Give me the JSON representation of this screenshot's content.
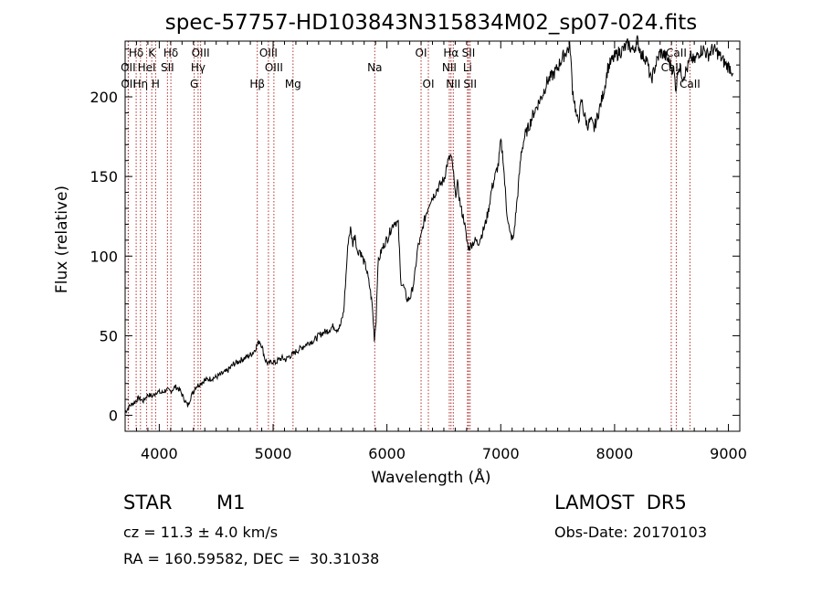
{
  "chart_data": {
    "type": "line",
    "title": "spec-57757-HD103843N315834M02_sp07-024.fits",
    "xlabel": "Wavelength (Å)",
    "ylabel": "Flux (relative)",
    "xlim": [
      3700,
      9100
    ],
    "ylim": [
      -10,
      235
    ],
    "xticks": [
      4000,
      5000,
      6000,
      7000,
      8000,
      9000
    ],
    "yticks": [
      0,
      50,
      100,
      150,
      200
    ],
    "grid": false,
    "line_color": "#000000",
    "marker_color": "#b03030",
    "series": [
      {
        "x": [
          3700,
          3740,
          3780,
          3820,
          3860,
          3900,
          3940,
          3980,
          4020,
          4060,
          4100,
          4140,
          4180,
          4220,
          4250,
          4280,
          4320,
          4360,
          4400,
          4450,
          4500,
          4550,
          4600,
          4650,
          4700,
          4750,
          4800,
          4830,
          4860,
          4880,
          4900,
          4930,
          4960,
          4990,
          5020,
          5050,
          5080,
          5110,
          5140,
          5170,
          5200,
          5240,
          5280,
          5320,
          5360,
          5400,
          5440,
          5480,
          5510,
          5530,
          5560,
          5590,
          5620,
          5660,
          5680,
          5700,
          5720,
          5740,
          5760,
          5790,
          5820,
          5850,
          5870,
          5890,
          5905,
          5920,
          5950,
          5980,
          6010,
          6040,
          6070,
          6100,
          6120,
          6150,
          6180,
          6210,
          6240,
          6270,
          6300,
          6320,
          6350,
          6380,
          6410,
          6440,
          6470,
          6500,
          6530,
          6560,
          6580,
          6600,
          6620,
          6650,
          6680,
          6700,
          6720,
          6750,
          6780,
          6800,
          6830,
          6860,
          6890,
          6920,
          6950,
          6980,
          7000,
          7020,
          7050,
          7080,
          7110,
          7130,
          7150,
          7180,
          7210,
          7250,
          7290,
          7330,
          7370,
          7410,
          7450,
          7490,
          7530,
          7570,
          7590,
          7610,
          7630,
          7650,
          7670,
          7690,
          7710,
          7730,
          7760,
          7790,
          7820,
          7850,
          7880,
          7910,
          7940,
          7970,
          8000,
          8040,
          8080,
          8120,
          8160,
          8200,
          8240,
          8280,
          8320,
          8360,
          8400,
          8440,
          8480,
          8520,
          8540,
          8560,
          8600,
          8640,
          8670,
          8700,
          8740,
          8780,
          8820,
          8860,
          8900,
          8940,
          8980,
          9020,
          9040
        ],
        "y": [
          2,
          6,
          8,
          11,
          9,
          13,
          12,
          15,
          14,
          16,
          15,
          18,
          16,
          10,
          6,
          12,
          18,
          20,
          22,
          23,
          24,
          26,
          28,
          32,
          34,
          36,
          38,
          40,
          44,
          47,
          44,
          35,
          32,
          34,
          33,
          35,
          36,
          35,
          37,
          38,
          40,
          42,
          44,
          46,
          47,
          50,
          52,
          53,
          55,
          56,
          54,
          56,
          65,
          110,
          117,
          108,
          114,
          102,
          104,
          98,
          92,
          80,
          70,
          48,
          60,
          95,
          103,
          108,
          112,
          118,
          122,
          120,
          85,
          80,
          72,
          75,
          85,
          105,
          112,
          120,
          128,
          135,
          138,
          142,
          145,
          148,
          158,
          163,
          155,
          138,
          145,
          130,
          122,
          110,
          105,
          108,
          110,
          108,
          113,
          119,
          128,
          142,
          150,
          158,
          172,
          162,
          130,
          114,
          110,
          125,
          140,
          165,
          175,
          182,
          190,
          196,
          202,
          210,
          213,
          217,
          223,
          228,
          230,
          231,
          205,
          196,
          185,
          188,
          198,
          190,
          182,
          185,
          180,
          188,
          196,
          205,
          218,
          222,
          225,
          228,
          230,
          233,
          229,
          235,
          226,
          224,
          210,
          220,
          228,
          226,
          222,
          216,
          205,
          220,
          213,
          218,
          225,
          222,
          228,
          230,
          226,
          230,
          228,
          224,
          220,
          218,
          215
        ]
      }
    ],
    "line_markers": [
      {
        "label": "Hδ",
        "x": 3797,
        "row": 0
      },
      {
        "label": "K",
        "x": 3934,
        "row": 0
      },
      {
        "label": "Hδ",
        "x": 4102,
        "row": 0
      },
      {
        "label": "OIII",
        "x": 4363,
        "row": 0
      },
      {
        "label": "OIII",
        "x": 4959,
        "row": 0
      },
      {
        "label": "OI",
        "x": 6300,
        "row": 0
      },
      {
        "label": "Hα",
        "x": 6563,
        "row": 0
      },
      {
        "label": "SII",
        "x": 6717,
        "row": 0
      },
      {
        "label": "CaII",
        "x": 8542,
        "row": 0
      },
      {
        "label": "OII",
        "x": 3727,
        "row": 1
      },
      {
        "label": "HeI",
        "x": 3889,
        "row": 1
      },
      {
        "label": "SII",
        "x": 4072,
        "row": 1
      },
      {
        "label": "Hγ",
        "x": 4341,
        "row": 1
      },
      {
        "label": "OIII",
        "x": 5007,
        "row": 1
      },
      {
        "label": "Na",
        "x": 5893,
        "row": 1
      },
      {
        "label": "NII",
        "x": 6548,
        "row": 1
      },
      {
        "label": "Li",
        "x": 6708,
        "row": 1
      },
      {
        "label": "CaII",
        "x": 8498,
        "row": 1
      },
      {
        "label": "OII",
        "x": 3729,
        "row": 2
      },
      {
        "label": "Hη",
        "x": 3835,
        "row": 2
      },
      {
        "label": "H",
        "x": 3968,
        "row": 2
      },
      {
        "label": "G",
        "x": 4307,
        "row": 2
      },
      {
        "label": "Hβ",
        "x": 4861,
        "row": 2
      },
      {
        "label": "Mg",
        "x": 5175,
        "row": 2
      },
      {
        "label": "OI",
        "x": 6364,
        "row": 2
      },
      {
        "label": "NII",
        "x": 6583,
        "row": 2
      },
      {
        "label": "SII",
        "x": 6731,
        "row": 2
      },
      {
        "label": "CaII",
        "x": 8662,
        "row": 2
      }
    ]
  },
  "info": {
    "object_class": "STAR",
    "subclass": "M1",
    "survey": "LAMOST  DR5",
    "redshift": "cz = 11.3 ± 4.0 km/s",
    "obs_date": "Obs-Date: 20170103",
    "coords": "RA = 160.59582, DEC =  30.31038"
  }
}
